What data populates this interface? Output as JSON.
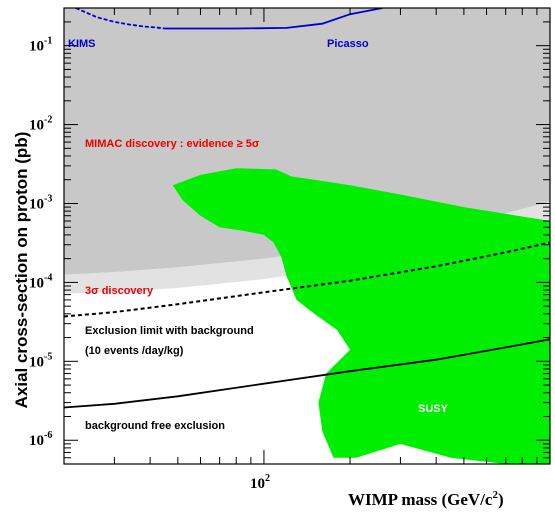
{
  "chart_data": {
    "type": "area",
    "xlabel_main": "WIMP mass (GeV/c",
    "xlabel_sup": "2",
    "xlabel_close": ")",
    "ylabel": "Axial cross-section on proton (pb)",
    "xscale": "log",
    "yscale": "log",
    "xlim": [
      20,
      1000
    ],
    "ylim": [
      5e-07,
      0.3
    ],
    "x_tick_label": {
      "base": "10",
      "exp": "2",
      "value": 100
    },
    "y_tick_labels": [
      {
        "base": "10",
        "exp": "-6",
        "value": 1e-06
      },
      {
        "base": "10",
        "exp": "-5",
        "value": 1e-05
      },
      {
        "base": "10",
        "exp": "-4",
        "value": 0.0001
      },
      {
        "base": "10",
        "exp": "-3",
        "value": 0.001
      },
      {
        "base": "10",
        "exp": "-2",
        "value": 0.01
      },
      {
        "base": "10",
        "exp": "-1",
        "value": 0.1
      }
    ],
    "colors": {
      "evidence_5sigma": "#c8c8c8",
      "discovery_3sigma": "#e2e2e2",
      "susy": "#00ee00",
      "limits": "#0000cc",
      "text_red": "#ee0000",
      "text_blue": "#0000cc"
    },
    "annotations": {
      "kims": "KIMS",
      "picasso": "Picasso",
      "mimac_5sigma": "MIMAC discovery : evidence  ≥ 5σ",
      "sigma3": "3σ  discovery",
      "exclusion_bg_line1": "Exclusion limit with background",
      "exclusion_bg_line2": "(10 events /day/kg)",
      "bg_free": "background free exclusion",
      "susy": "SUSY"
    },
    "series": [
      {
        "name": "MIMAC discovery : evidence ≥ 5σ (lower edge)",
        "x": [
          20,
          30,
          50,
          100,
          200,
          400,
          700,
          1000
        ],
        "y": [
          0.000125,
          0.000135,
          0.000155,
          0.0002,
          0.00028,
          0.00048,
          0.00075,
          0.00105
        ]
      },
      {
        "name": "3σ discovery (lower edge)",
        "x": [
          20,
          30,
          50,
          100,
          200,
          400,
          700,
          1000
        ],
        "y": [
          7.2e-05,
          7.6e-05,
          8.5e-05,
          0.00011,
          0.00016,
          0.00028,
          0.00043,
          0.0006
        ]
      },
      {
        "name": "Exclusion limit with background",
        "x": [
          20,
          30,
          50,
          100,
          200,
          400,
          700,
          1000
        ],
        "y": [
          3.7e-05,
          4.2e-05,
          5.3e-05,
          7.5e-05,
          0.000105,
          0.00016,
          0.00024,
          0.00032
        ]
      },
      {
        "name": "background free exclusion",
        "x": [
          20,
          30,
          50,
          100,
          200,
          400,
          700,
          1000
        ],
        "y": [
          2.6e-06,
          2.9e-06,
          3.6e-06,
          5.2e-06,
          7.5e-06,
          1.05e-05,
          1.5e-05,
          1.9e-05
        ]
      },
      {
        "name": "KIMS",
        "x": [
          22,
          26,
          30,
          34,
          38,
          42,
          45
        ],
        "y": [
          0.3,
          0.23,
          0.2,
          0.185,
          0.175,
          0.17,
          0.165
        ]
      },
      {
        "name": "Picasso",
        "x": [
          45,
          80,
          120,
          160,
          200,
          260
        ],
        "y": [
          0.165,
          0.165,
          0.168,
          0.19,
          0.25,
          0.3
        ]
      },
      {
        "name": "SUSY",
        "x": [
          48,
          60,
          80,
          110,
          125,
          150,
          200,
          300,
          500,
          1000,
          1000,
          700,
          450,
          300,
          210,
          175,
          160,
          155,
          165,
          200,
          180,
          150,
          130,
          120,
          115,
          108,
          100,
          85,
          70,
          60,
          52,
          48
        ],
        "y": [
          0.0017,
          0.0023,
          0.0028,
          0.0027,
          0.0022,
          0.002,
          0.0017,
          0.0013,
          0.0009,
          0.0006,
          5e-07,
          5e-07,
          6e-07,
          9e-07,
          6e-07,
          6e-07,
          1.3e-06,
          3e-06,
          7e-06,
          1.4e-05,
          2.5e-05,
          4e-05,
          6e-05,
          0.00012,
          0.00021,
          0.00032,
          0.0004,
          0.00045,
          0.0005,
          0.0007,
          0.0011,
          0.0017
        ]
      }
    ]
  }
}
